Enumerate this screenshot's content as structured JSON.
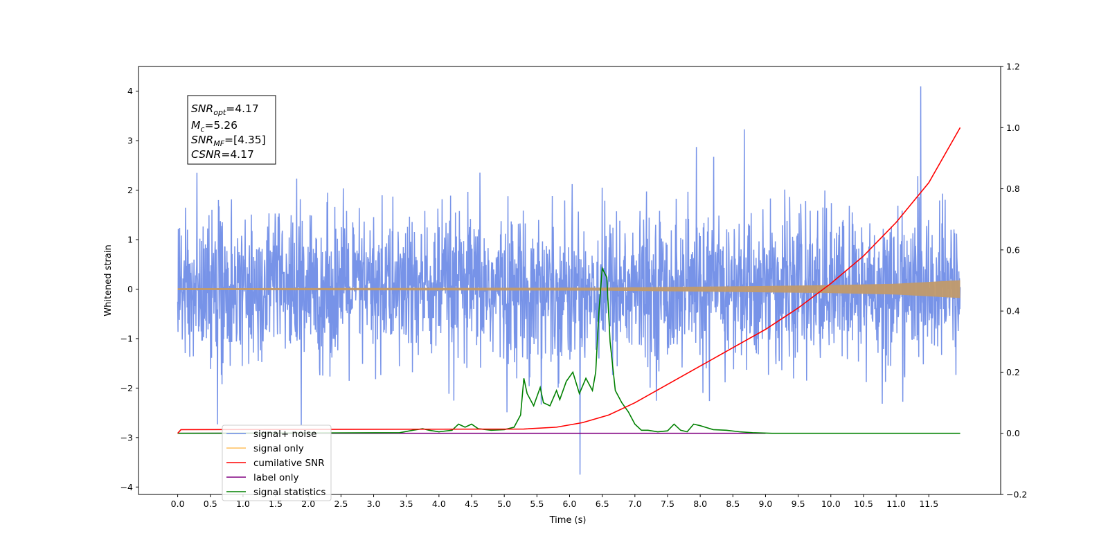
{
  "chart_data": {
    "type": "line",
    "xlabel": "Time (s)",
    "ylabel_left": "Whitened strain",
    "ylabel_right": "",
    "xlim": [
      -0.6,
      12.6
    ],
    "ylim_left": [
      -4.15,
      4.5
    ],
    "ylim_right": [
      -0.2,
      1.2
    ],
    "x_ticks": [
      "0.0",
      "0.5",
      "1.0",
      "1.5",
      "2.0",
      "2.5",
      "3.0",
      "3.5",
      "4.0",
      "4.5",
      "5.0",
      "5.5",
      "6.0",
      "6.5",
      "7.0",
      "7.5",
      "8.0",
      "8.5",
      "9.0",
      "9.5",
      "10.0",
      "10.5",
      "11.0",
      "11.5"
    ],
    "y_ticks_left": [
      "4",
      "3",
      "2",
      "1",
      "0",
      "−1",
      "−2",
      "−3",
      "−4"
    ],
    "y_ticks_right": [
      "1.2",
      "1.0",
      "0.8",
      "0.6",
      "0.4",
      "0.2",
      "0.0",
      "−0.2"
    ],
    "grid": false,
    "legend_position": "lower-left",
    "annotation": {
      "snr_opt": {
        "base": "SNR",
        "sub": "opt",
        "value": "=4.17"
      },
      "mc": {
        "base": "M",
        "sub": "c",
        "value": "=5.26"
      },
      "snr_mf": {
        "base": "SNR",
        "sub": "MF",
        "value": "=[4.35]"
      },
      "csnr": {
        "base": "CSNR",
        "value": "=4.17"
      }
    },
    "series": [
      {
        "name": "signal+ noise",
        "axis": "left",
        "color": "#6b8ae6",
        "x_range": [
          0.0,
          11.98
        ],
        "description_stats": {
          "std": 0.75,
          "max_peak": 4.1,
          "min_peak": -3.7
        }
      },
      {
        "name": "signal only",
        "axis": "left",
        "color": "#ffbf5c",
        "x_range": [
          0.0,
          11.98
        ],
        "envelope": [
          [
            0.0,
            0.02
          ],
          [
            6.5,
            0.03
          ],
          [
            8.0,
            0.05
          ],
          [
            10.0,
            0.08
          ],
          [
            11.0,
            0.11
          ],
          [
            11.98,
            0.18
          ]
        ]
      },
      {
        "name": "cumilative SNR",
        "axis": "right",
        "color": "#ff0000",
        "x": [
          0.0,
          0.05,
          5.3,
          5.8,
          6.2,
          6.6,
          7.0,
          7.5,
          8.0,
          8.5,
          9.0,
          9.5,
          10.0,
          10.5,
          11.0,
          11.5,
          11.98
        ],
        "y": [
          0.0,
          0.012,
          0.014,
          0.02,
          0.035,
          0.06,
          0.1,
          0.16,
          0.22,
          0.28,
          0.34,
          0.41,
          0.49,
          0.58,
          0.69,
          0.82,
          1.0
        ]
      },
      {
        "name": "label only",
        "axis": "right",
        "color": "#800080",
        "x": [
          0.0,
          9.0
        ],
        "y": [
          0.0,
          0.0
        ]
      },
      {
        "name": "signal statistics",
        "axis": "right",
        "color": "#008000",
        "x": [
          0.0,
          3.4,
          3.6,
          3.75,
          3.85,
          4.0,
          4.2,
          4.3,
          4.4,
          4.5,
          4.6,
          4.8,
          5.0,
          5.15,
          5.25,
          5.3,
          5.35,
          5.45,
          5.55,
          5.6,
          5.7,
          5.8,
          5.85,
          5.95,
          6.05,
          6.15,
          6.25,
          6.3,
          6.35,
          6.4,
          6.45,
          6.5,
          6.57,
          6.62,
          6.7,
          6.8,
          6.9,
          7.0,
          7.1,
          7.2,
          7.35,
          7.5,
          7.6,
          7.7,
          7.8,
          7.9,
          8.0,
          8.2,
          8.4,
          8.6,
          8.8,
          9.1,
          11.98
        ],
        "y": [
          0.0,
          0.002,
          0.01,
          0.015,
          0.01,
          0.005,
          0.01,
          0.03,
          0.02,
          0.03,
          0.015,
          0.01,
          0.012,
          0.02,
          0.06,
          0.18,
          0.13,
          0.09,
          0.15,
          0.1,
          0.09,
          0.14,
          0.11,
          0.17,
          0.2,
          0.13,
          0.18,
          0.16,
          0.14,
          0.2,
          0.4,
          0.54,
          0.51,
          0.3,
          0.14,
          0.1,
          0.07,
          0.03,
          0.01,
          0.01,
          0.005,
          0.008,
          0.03,
          0.01,
          0.005,
          0.03,
          0.025,
          0.012,
          0.01,
          0.005,
          0.002,
          0.0,
          0.0
        ]
      }
    ],
    "legend_entries": [
      "signal+ noise",
      "signal only",
      "cumilative SNR",
      "label only",
      "signal statistics"
    ]
  }
}
